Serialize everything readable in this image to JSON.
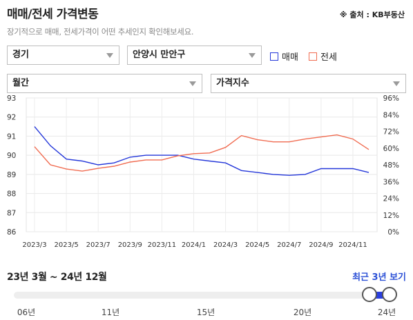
{
  "header": {
    "title": "매매/전세 가격변동",
    "source": "※ 출처 : KB부동산",
    "subtitle": "장기적으로 매매, 전세가격이 어떤 추세인지 확인해보세요."
  },
  "filters": {
    "region": "경기",
    "district": "안양시 만안구",
    "period": "월간",
    "metric": "가격지수"
  },
  "legend": {
    "sale_label": "매매",
    "jeonse_label": "전세"
  },
  "colors": {
    "sale": "#2336d9",
    "jeonse": "#f06b50",
    "accent": "#2a4fd6"
  },
  "chart_data": {
    "type": "line",
    "x": [
      "2023/3",
      "2023/4",
      "2023/5",
      "2023/6",
      "2023/7",
      "2023/8",
      "2023/9",
      "2023/10",
      "2023/11",
      "2023/12",
      "2024/1",
      "2024/2",
      "2024/3",
      "2024/4",
      "2024/5",
      "2024/6",
      "2024/7",
      "2024/8",
      "2024/9",
      "2024/10",
      "2024/11",
      "2024/12"
    ],
    "x_tick_labels": [
      "2023/3",
      "2023/5",
      "2023/7",
      "2023/9",
      "2023/11",
      "2024/1",
      "2024/3",
      "2024/5",
      "2024/7",
      "2024/9",
      "2024/11"
    ],
    "series": [
      {
        "name": "매매",
        "axis": "left",
        "values": [
          91.5,
          90.5,
          89.8,
          89.7,
          89.5,
          89.6,
          89.9,
          90.0,
          90.0,
          90.0,
          89.8,
          89.7,
          89.6,
          89.2,
          89.1,
          89.0,
          88.95,
          89.0,
          89.3,
          89.3,
          89.3,
          89.1
        ]
      },
      {
        "name": "전세",
        "axis": "right",
        "values": [
          61,
          48,
          45,
          43.5,
          45.5,
          47,
          50,
          51.5,
          51.5,
          54.5,
          56,
          56.5,
          60.5,
          69,
          66,
          64.5,
          64.5,
          66.5,
          68,
          69.5,
          66.5,
          59
        ]
      }
    ],
    "y_left": {
      "ylim": [
        86,
        93
      ],
      "ticks": [
        86,
        87,
        88,
        89,
        90,
        91,
        92,
        93
      ]
    },
    "y_right": {
      "ylim": [
        0,
        96
      ],
      "ticks": [
        "0%",
        "12%",
        "24%",
        "36%",
        "48%",
        "60%",
        "72%",
        "84%",
        "96%"
      ]
    },
    "grid": true
  },
  "range": {
    "label": "23년 3월 ~ 24년 12월",
    "recent_button": "최근 3년 보기",
    "year_ticks": [
      "06년",
      "11년",
      "15년",
      "20년",
      "24년"
    ]
  }
}
